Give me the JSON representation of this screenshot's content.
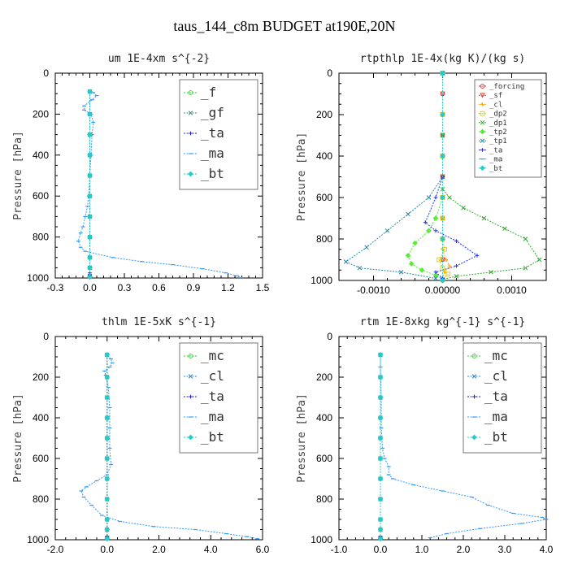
{
  "figure": {
    "title": "taus_144_c8m  BUDGET at190E,20N"
  },
  "chart_data": [
    {
      "type": "line",
      "title": "um  1E-4xm s^{-2}",
      "ylabel": "Pressure [hPa]",
      "xlim": [
        -0.3,
        1.5
      ],
      "xticks": [
        "-0.3",
        "0.0",
        "0.3",
        "0.6",
        "0.9",
        "1.2",
        "1.5"
      ],
      "xtick_values": [
        -0.3,
        0.0,
        0.3,
        0.6,
        0.9,
        1.2,
        1.5
      ],
      "ylim": [
        0,
        1000
      ],
      "yticks": [
        "0",
        "200",
        "400",
        "600",
        "800",
        "1000"
      ],
      "legend_position": "top-right",
      "legend_size": "large",
      "series": [
        {
          "name": "_f",
          "color": "#33cc33",
          "marker": "circle",
          "x": [
            0,
            0,
            0,
            0,
            0,
            0,
            0,
            0,
            0,
            0,
            0
          ],
          "y": [
            90,
            200,
            300,
            400,
            500,
            600,
            700,
            800,
            900,
            950,
            990
          ]
        },
        {
          "name": "_gf",
          "color": "#448888",
          "marker": "x",
          "x": [
            0,
            0,
            0,
            0,
            0,
            0,
            0,
            0,
            0,
            0,
            0
          ],
          "y": [
            90,
            200,
            300,
            400,
            500,
            600,
            700,
            800,
            900,
            950,
            990
          ]
        },
        {
          "name": "_ta",
          "color": "#2222cc",
          "marker": "plus",
          "x": [
            0,
            0,
            0,
            0,
            0,
            0,
            0,
            0,
            0,
            0,
            0,
            0,
            0,
            0
          ],
          "y": [
            90,
            200,
            300,
            400,
            500,
            600,
            700,
            800,
            900,
            950,
            975,
            985,
            992,
            998
          ]
        },
        {
          "name": "_ma",
          "color": "#3399ff",
          "marker": "dash",
          "x": [
            0.03,
            0.06,
            0.02,
            -0.05,
            -0.05,
            0.01,
            0.03,
            0.02,
            0.01,
            0.0,
            -0.01,
            -0.02,
            -0.04,
            -0.06,
            -0.08,
            -0.1,
            -0.08,
            -0.04,
            0.2,
            0.45,
            0.72,
            0.98,
            1.18,
            1.28,
            1.31
          ],
          "y": [
            95,
            110,
            130,
            160,
            180,
            200,
            240,
            300,
            400,
            500,
            600,
            650,
            700,
            750,
            780,
            820,
            850,
            870,
            900,
            920,
            935,
            955,
            975,
            990,
            998
          ]
        },
        {
          "name": "_bt",
          "color": "#22cccc",
          "marker": "diamond",
          "x": [
            0,
            0,
            0,
            0,
            0,
            0,
            0,
            0,
            0,
            0,
            0
          ],
          "y": [
            90,
            200,
            300,
            400,
            500,
            600,
            700,
            800,
            900,
            950,
            995
          ]
        }
      ]
    },
    {
      "type": "line",
      "title": "rtpthlp  1E-4x(kg K)/(kg s)",
      "ylabel": "Pressure [hPa]",
      "xlim": [
        -0.0015,
        0.0015
      ],
      "xticks": [
        "-0.0010",
        "0.00000",
        "0.0010"
      ],
      "xtick_values": [
        -0.001,
        0.0,
        0.001
      ],
      "ylim": [
        0,
        1000
      ],
      "yticks": [
        "0",
        "200",
        "400",
        "600",
        "800",
        "1000"
      ],
      "legend_position": "top-right",
      "legend_size": "small",
      "series": [
        {
          "name": "_forcing",
          "color": "#ee2222",
          "marker": "circle",
          "x": [
            0,
            0,
            0,
            0,
            0,
            0,
            0,
            0,
            0,
            0,
            0
          ],
          "y": [
            0,
            100,
            200,
            300,
            400,
            500,
            600,
            700,
            800,
            900,
            1000
          ]
        },
        {
          "name": "_sf",
          "color": "#ee3322",
          "marker": "tri",
          "x": [
            0,
            0,
            0,
            0,
            0,
            0,
            0,
            0,
            0,
            0,
            0
          ],
          "y": [
            0,
            100,
            200,
            300,
            400,
            500,
            600,
            700,
            800,
            900,
            1000
          ]
        },
        {
          "name": "_cl",
          "color": "#ffaa00",
          "marker": "star",
          "x": [
            0,
            0,
            0,
            0,
            0,
            0,
            0,
            5e-05,
            0.0001,
            3e-05,
            0
          ],
          "y": [
            0,
            200,
            400,
            600,
            700,
            800,
            850,
            900,
            930,
            960,
            990
          ]
        },
        {
          "name": "_dp2",
          "color": "#ddcc00",
          "marker": "square",
          "x": [
            0,
            0,
            0,
            0,
            0,
            0,
            3e-05,
            -5e-05,
            0,
            8e-05,
            0
          ],
          "y": [
            0,
            200,
            400,
            600,
            700,
            800,
            850,
            900,
            940,
            970,
            995
          ]
        },
        {
          "name": "_dp1",
          "color": "#33aa33",
          "marker": "x",
          "x": [
            0,
            0,
            0,
            0,
            0.0001,
            0.0003,
            0.0006,
            0.0009,
            0.0012,
            0.0014,
            0.0012,
            0.0007,
            0.0002,
            0
          ],
          "y": [
            0,
            300,
            500,
            560,
            600,
            650,
            700,
            750,
            800,
            900,
            940,
            960,
            980,
            995
          ]
        },
        {
          "name": "_tp2",
          "color": "#55ee33",
          "marker": "diamond",
          "x": [
            0,
            0,
            0,
            -0.0001,
            -0.0002,
            -0.0004,
            -0.0005,
            -0.00045,
            -0.0003,
            -0.0001,
            0
          ],
          "y": [
            0,
            400,
            600,
            700,
            760,
            820,
            880,
            920,
            950,
            975,
            995
          ]
        },
        {
          "name": "_tp1",
          "color": "#2288aa",
          "marker": "x",
          "x": [
            0,
            0,
            -0.0002,
            -0.0005,
            -0.0008,
            -0.0011,
            -0.0014,
            -0.0012,
            -0.0006,
            -0.0001
          ],
          "y": [
            0,
            500,
            600,
            680,
            760,
            840,
            910,
            940,
            960,
            990
          ]
        },
        {
          "name": "_ta",
          "color": "#2233ee",
          "marker": "plus",
          "x": [
            0,
            0,
            -0.0001,
            -0.00025,
            -0.0001,
            0.0002,
            0.0005,
            0.0002,
            -0.0001,
            0
          ],
          "y": [
            0,
            500,
            600,
            720,
            760,
            810,
            880,
            930,
            960,
            990
          ]
        },
        {
          "name": "_ma",
          "color": "#3399ff",
          "marker": "dash",
          "x": [
            0,
            0,
            0,
            0,
            0,
            0
          ],
          "y": [
            0,
            200,
            400,
            600,
            800,
            1000
          ]
        },
        {
          "name": "_bt",
          "color": "#22cccc",
          "marker": "diamond",
          "x": [
            0,
            0,
            0,
            0,
            0,
            0
          ],
          "y": [
            0,
            200,
            400,
            600,
            800,
            1000
          ]
        }
      ]
    },
    {
      "type": "line",
      "title": "thlm  1E-5xK s^{-1}",
      "ylabel": "Pressure [hPa]",
      "xlim": [
        -2.0,
        6.0
      ],
      "xticks": [
        "-2.0",
        "0.0",
        "2.0",
        "4.0",
        "6.0"
      ],
      "xtick_values": [
        -2.0,
        0.0,
        2.0,
        4.0,
        6.0
      ],
      "ylim": [
        0,
        1000
      ],
      "yticks": [
        "0",
        "200",
        "400",
        "600",
        "800",
        "1000"
      ],
      "legend_position": "top-right",
      "legend_size": "large",
      "series": [
        {
          "name": "_mc",
          "color": "#33cc33",
          "marker": "circle",
          "x": [
            0,
            0,
            0,
            0,
            0,
            0,
            0,
            0,
            0,
            0,
            0
          ],
          "y": [
            90,
            200,
            300,
            400,
            500,
            600,
            700,
            800,
            900,
            950,
            990
          ]
        },
        {
          "name": "_cl",
          "color": "#3388cc",
          "marker": "x",
          "x": [
            0,
            0,
            0,
            0,
            0,
            0,
            0,
            0,
            0,
            0,
            0
          ],
          "y": [
            90,
            200,
            300,
            400,
            500,
            600,
            700,
            800,
            900,
            950,
            990
          ]
        },
        {
          "name": "_ta",
          "color": "#2222cc",
          "marker": "plus",
          "x": [
            0,
            0,
            0,
            0,
            0,
            0,
            0,
            0,
            0,
            0,
            0,
            0
          ],
          "y": [
            90,
            200,
            300,
            400,
            500,
            600,
            700,
            800,
            900,
            950,
            985,
            998
          ]
        },
        {
          "name": "_ma",
          "color": "#3399ff",
          "marker": "dash",
          "x": [
            0.0,
            0.15,
            0.2,
            0.1,
            -0.1,
            -0.05,
            0.05,
            0.1,
            0.1,
            0.1,
            0.15,
            0.0,
            -0.4,
            -0.8,
            -1.0,
            -0.9,
            -0.6,
            -0.2,
            0.5,
            1.8,
            3.4,
            4.6,
            5.4,
            5.8
          ],
          "y": [
            95,
            110,
            130,
            150,
            170,
            190,
            250,
            350,
            450,
            550,
            630,
            680,
            710,
            740,
            760,
            790,
            830,
            880,
            910,
            935,
            950,
            970,
            985,
            995
          ]
        },
        {
          "name": "_bt",
          "color": "#22cccc",
          "marker": "diamond",
          "x": [
            0,
            0,
            0,
            0,
            0,
            0,
            0,
            0,
            0,
            0,
            0
          ],
          "y": [
            90,
            200,
            300,
            400,
            500,
            600,
            700,
            800,
            900,
            950,
            995
          ]
        }
      ]
    },
    {
      "type": "line",
      "title": "rtm  1E-8xkg kg^{-1} s^{-1}",
      "ylabel": "Pressure [hPa]",
      "xlim": [
        -1.0,
        4.0
      ],
      "xticks": [
        "-1.0",
        "0.0",
        "1.0",
        "2.0",
        "3.0",
        "4.0"
      ],
      "xtick_values": [
        -1.0,
        0.0,
        1.0,
        2.0,
        3.0,
        4.0
      ],
      "ylim": [
        0,
        1000
      ],
      "yticks": [
        "0",
        "200",
        "400",
        "600",
        "800",
        "1000"
      ],
      "legend_position": "top-right",
      "legend_size": "large",
      "series": [
        {
          "name": "_mc",
          "color": "#33cc33",
          "marker": "circle",
          "x": [
            0,
            0,
            0,
            0,
            0,
            0,
            0,
            0,
            0,
            0,
            0
          ],
          "y": [
            90,
            200,
            300,
            400,
            500,
            600,
            700,
            800,
            900,
            950,
            990
          ]
        },
        {
          "name": "_cl",
          "color": "#3388cc",
          "marker": "x",
          "x": [
            0,
            0,
            0,
            0,
            0,
            0,
            0,
            0,
            0,
            0,
            0
          ],
          "y": [
            90,
            200,
            300,
            400,
            500,
            600,
            700,
            800,
            900,
            950,
            990
          ]
        },
        {
          "name": "_ta",
          "color": "#2222cc",
          "marker": "plus",
          "x": [
            0,
            0,
            0,
            0,
            0,
            0,
            0,
            0,
            0,
            0,
            0,
            0
          ],
          "y": [
            90,
            200,
            300,
            400,
            500,
            600,
            700,
            800,
            900,
            950,
            985,
            998
          ]
        },
        {
          "name": "_ma",
          "color": "#3399ff",
          "marker": "dash",
          "x": [
            0.0,
            0.0,
            0.02,
            0.02,
            0.05,
            0.1,
            0.2,
            0.2,
            0.3,
            0.8,
            1.5,
            2.2,
            2.6,
            3.2,
            3.9,
            4.0,
            3.4,
            2.4,
            1.6,
            1.2
          ],
          "y": [
            95,
            150,
            300,
            450,
            550,
            600,
            640,
            680,
            700,
            730,
            760,
            790,
            830,
            870,
            890,
            900,
            920,
            945,
            970,
            990
          ]
        },
        {
          "name": "_bt",
          "color": "#22cccc",
          "marker": "diamond",
          "x": [
            0,
            0,
            0,
            0,
            0,
            0,
            0,
            0,
            0,
            0,
            0
          ],
          "y": [
            90,
            200,
            300,
            400,
            500,
            600,
            700,
            800,
            900,
            950,
            995
          ]
        }
      ]
    }
  ]
}
